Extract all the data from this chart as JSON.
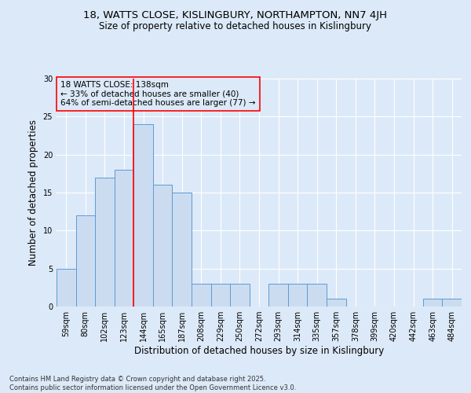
{
  "title1": "18, WATTS CLOSE, KISLINGBURY, NORTHAMPTON, NN7 4JH",
  "title2": "Size of property relative to detached houses in Kislingbury",
  "xlabel": "Distribution of detached houses by size in Kislingbury",
  "ylabel": "Number of detached properties",
  "categories": [
    "59sqm",
    "80sqm",
    "102sqm",
    "123sqm",
    "144sqm",
    "165sqm",
    "187sqm",
    "208sqm",
    "229sqm",
    "250sqm",
    "272sqm",
    "293sqm",
    "314sqm",
    "335sqm",
    "357sqm",
    "378sqm",
    "399sqm",
    "420sqm",
    "442sqm",
    "463sqm",
    "484sqm"
  ],
  "values": [
    5,
    12,
    17,
    18,
    24,
    16,
    15,
    3,
    3,
    3,
    0,
    3,
    3,
    3,
    1,
    0,
    0,
    0,
    0,
    1,
    1
  ],
  "bar_color": "#ccdcf0",
  "bar_edge_color": "#5b9bd5",
  "red_line_x": 3.5,
  "annotation_title": "18 WATTS CLOSE: 138sqm",
  "annotation_line1": "← 33% of detached houses are smaller (40)",
  "annotation_line2": "64% of semi-detached houses are larger (77) →",
  "ylim": [
    0,
    30
  ],
  "yticks": [
    0,
    5,
    10,
    15,
    20,
    25,
    30
  ],
  "background_color": "#dce9f8",
  "grid_color": "#ffffff",
  "footnote1": "Contains HM Land Registry data © Crown copyright and database right 2025.",
  "footnote2": "Contains public sector information licensed under the Open Government Licence v3.0."
}
